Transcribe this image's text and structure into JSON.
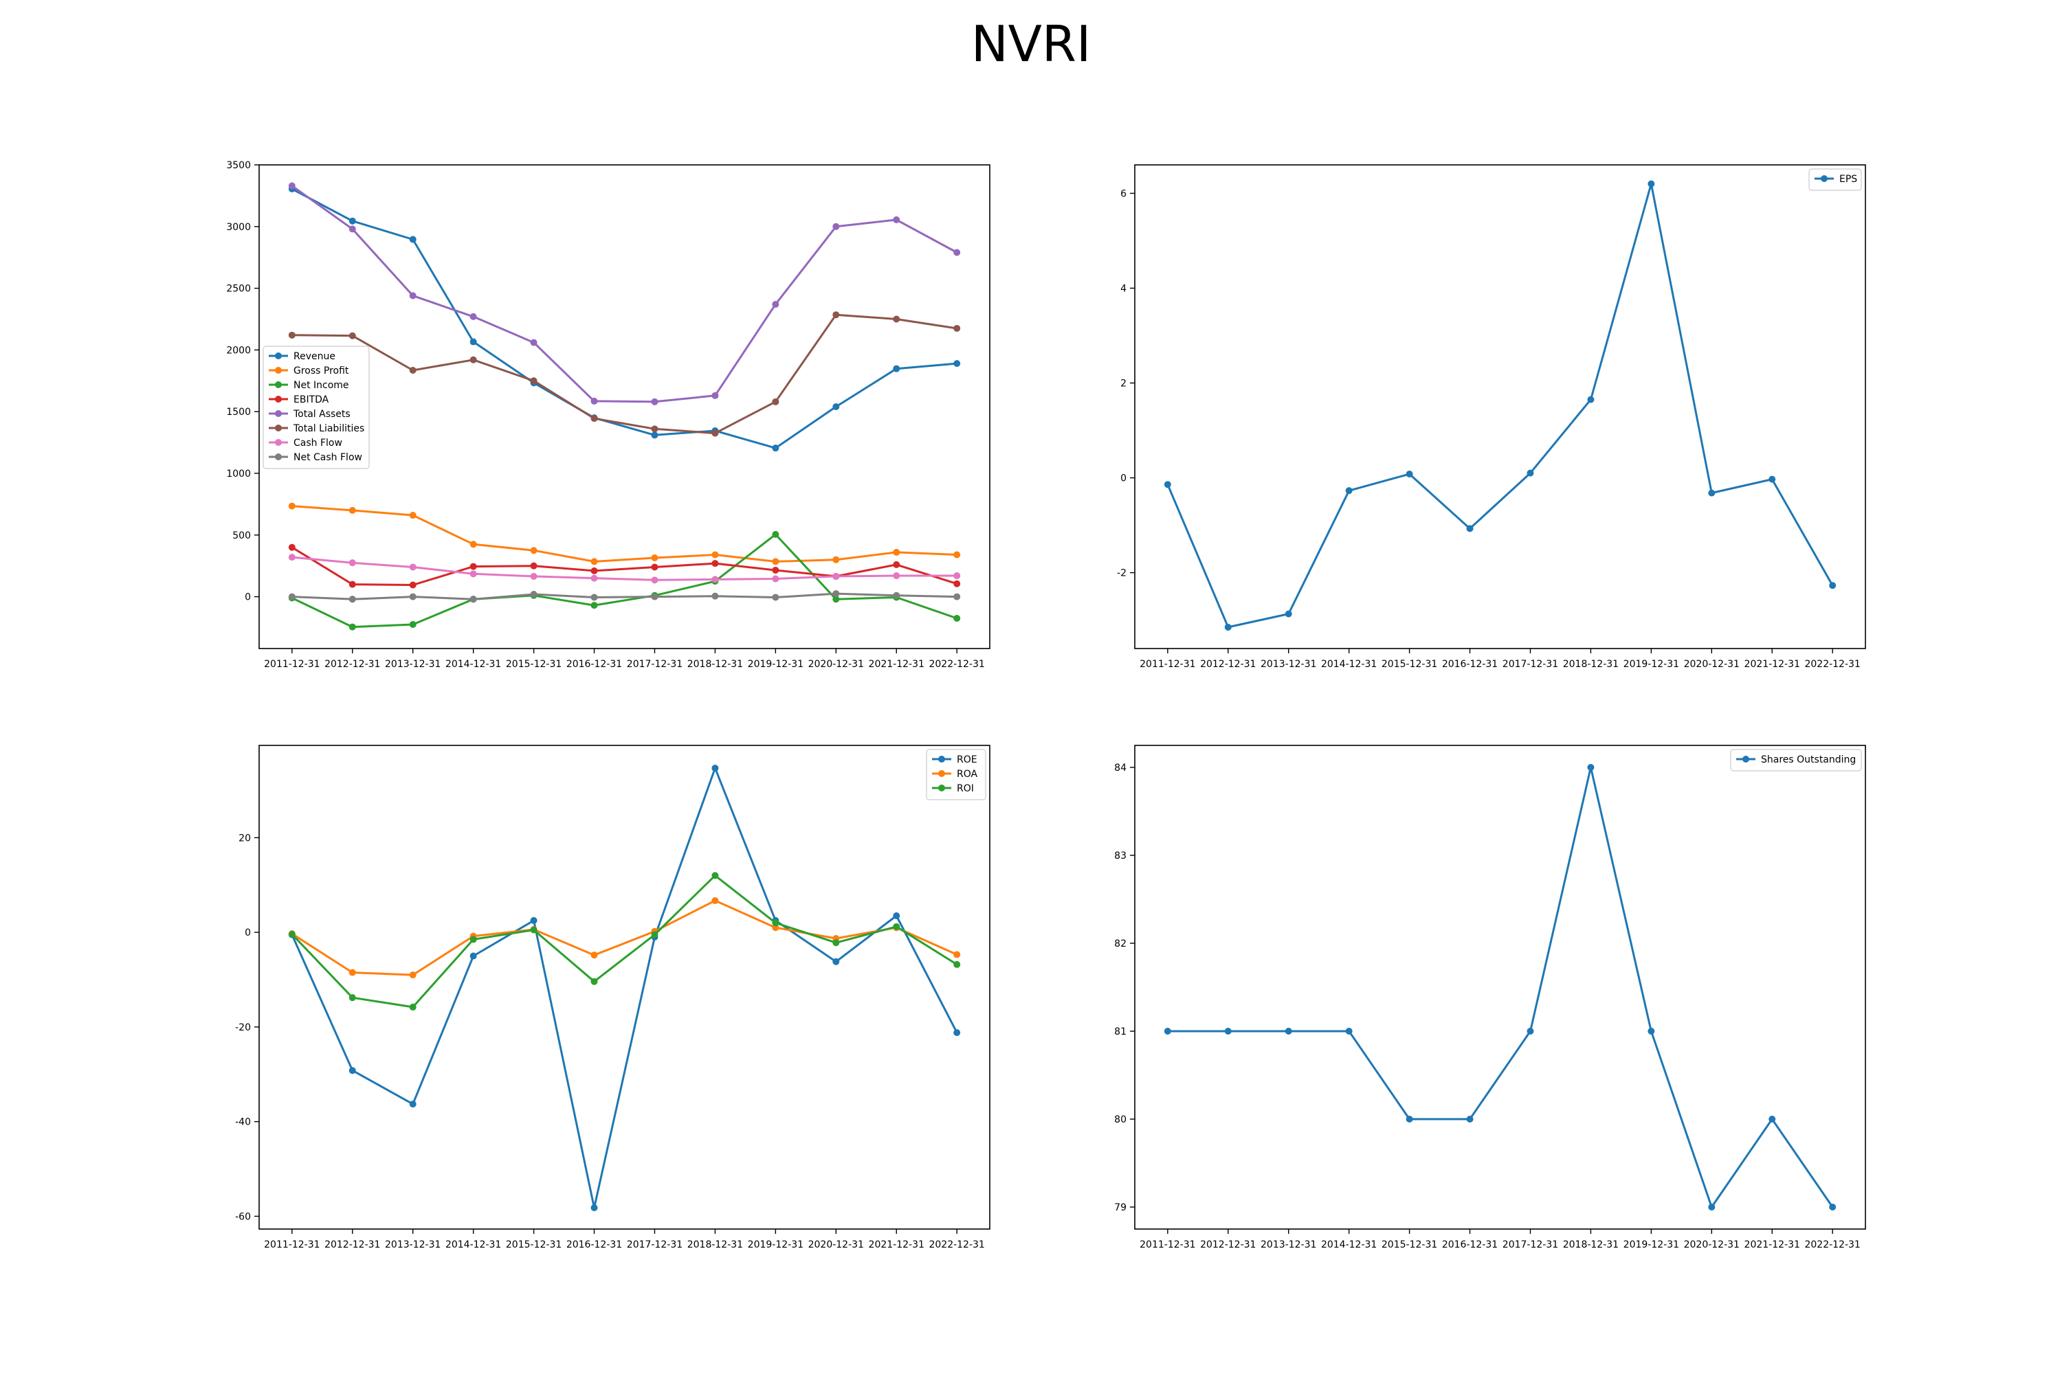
{
  "title": "NVRI",
  "colors": {
    "blue": "#1f77b4",
    "orange": "#ff7f0e",
    "green": "#2ca02c",
    "red": "#d62728",
    "purple": "#9467bd",
    "brown": "#8c564b",
    "pink": "#e377c2",
    "gray": "#7f7f7f"
  },
  "chart_data": [
    {
      "type": "line",
      "categories": [
        "2011-12-31",
        "2012-12-31",
        "2013-12-31",
        "2014-12-31",
        "2015-12-31",
        "2016-12-31",
        "2017-12-31",
        "2018-12-31",
        "2019-12-31",
        "2020-12-31",
        "2021-12-31",
        "2022-12-31"
      ],
      "ylim": [
        -420,
        3500
      ],
      "yticks": [
        0,
        500,
        1000,
        1500,
        2000,
        2500,
        3000,
        3500
      ],
      "legend": "center-left",
      "series": [
        {
          "name": "Revenue",
          "color": "#1f77b4",
          "values": [
            3305,
            3045,
            2896,
            2066,
            1733,
            1450,
            1310,
            1345,
            1205,
            1540,
            1848,
            1890
          ]
        },
        {
          "name": "Gross Profit",
          "color": "#ff7f0e",
          "values": [
            735,
            700,
            660,
            425,
            375,
            285,
            315,
            340,
            285,
            300,
            360,
            340
          ]
        },
        {
          "name": "Net Income",
          "color": "#2ca02c",
          "values": [
            -10,
            -245,
            -225,
            -20,
            10,
            -70,
            10,
            125,
            505,
            -20,
            -5,
            -175
          ]
        },
        {
          "name": "EBITDA",
          "color": "#d62728",
          "values": [
            400,
            100,
            95,
            245,
            250,
            210,
            240,
            270,
            215,
            165,
            260,
            105
          ]
        },
        {
          "name": "Total Assets",
          "color": "#9467bd",
          "values": [
            3330,
            2980,
            2440,
            2270,
            2060,
            1585,
            1580,
            1630,
            2370,
            3000,
            3055,
            2790
          ]
        },
        {
          "name": "Total Liabilities",
          "color": "#8c564b",
          "values": [
            2120,
            2115,
            1835,
            1920,
            1750,
            1445,
            1360,
            1325,
            1580,
            2285,
            2250,
            2175
          ]
        },
        {
          "name": "Cash Flow",
          "color": "#e377c2",
          "values": [
            320,
            275,
            240,
            185,
            165,
            150,
            135,
            140,
            145,
            165,
            170,
            170
          ]
        },
        {
          "name": "Net Cash Flow",
          "color": "#7f7f7f",
          "values": [
            0,
            -20,
            0,
            -20,
            20,
            -5,
            0,
            5,
            -5,
            25,
            10,
            0
          ]
        }
      ]
    },
    {
      "type": "line",
      "categories": [
        "2011-12-31",
        "2012-12-31",
        "2013-12-31",
        "2014-12-31",
        "2015-12-31",
        "2016-12-31",
        "2017-12-31",
        "2018-12-31",
        "2019-12-31",
        "2020-12-31",
        "2021-12-31",
        "2022-12-31"
      ],
      "ylim": [
        -3.6,
        6.6
      ],
      "yticks": [
        -2,
        0,
        2,
        4,
        6
      ],
      "legend": "top-right",
      "series": [
        {
          "name": "EPS",
          "color": "#1f77b4",
          "values": [
            -0.14,
            -3.15,
            -2.87,
            -0.27,
            0.08,
            -1.07,
            0.1,
            1.65,
            6.2,
            -0.32,
            -0.03,
            -2.27
          ]
        }
      ]
    },
    {
      "type": "line",
      "categories": [
        "2011-12-31",
        "2012-12-31",
        "2013-12-31",
        "2014-12-31",
        "2015-12-31",
        "2016-12-31",
        "2017-12-31",
        "2018-12-31",
        "2019-12-31",
        "2020-12-31",
        "2021-12-31",
        "2022-12-31"
      ],
      "ylim": [
        -62.7,
        39.5
      ],
      "yticks": [
        -60,
        -40,
        -20,
        0,
        20
      ],
      "legend": "top-right",
      "series": [
        {
          "name": "ROE",
          "color": "#1f77b4",
          "values": [
            -0.5,
            -29.2,
            -36.3,
            -5.0,
            2.5,
            -58.2,
            -1.0,
            34.7,
            2.5,
            -6.2,
            3.5,
            -21.2
          ]
        },
        {
          "name": "ROA",
          "color": "#ff7f0e",
          "values": [
            -0.3,
            -8.5,
            -9.0,
            -0.8,
            0.6,
            -4.8,
            0.2,
            6.7,
            1.0,
            -1.3,
            1.0,
            -4.7
          ]
        },
        {
          "name": "ROI",
          "color": "#2ca02c",
          "values": [
            -0.4,
            -13.8,
            -15.8,
            -1.5,
            0.5,
            -10.4,
            -0.5,
            12.0,
            2.0,
            -2.2,
            1.2,
            -6.8
          ]
        }
      ]
    },
    {
      "type": "line",
      "categories": [
        "2011-12-31",
        "2012-12-31",
        "2013-12-31",
        "2014-12-31",
        "2015-12-31",
        "2016-12-31",
        "2017-12-31",
        "2018-12-31",
        "2019-12-31",
        "2020-12-31",
        "2021-12-31",
        "2022-12-31"
      ],
      "ylim": [
        78.75,
        84.25
      ],
      "yticks": [
        79,
        80,
        81,
        82,
        83,
        84
      ],
      "legend": "top-right",
      "series": [
        {
          "name": "Shares Outstanding",
          "color": "#1f77b4",
          "values": [
            81,
            81,
            81,
            81,
            80,
            80,
            81,
            84,
            81,
            79,
            80,
            79
          ]
        }
      ]
    }
  ]
}
